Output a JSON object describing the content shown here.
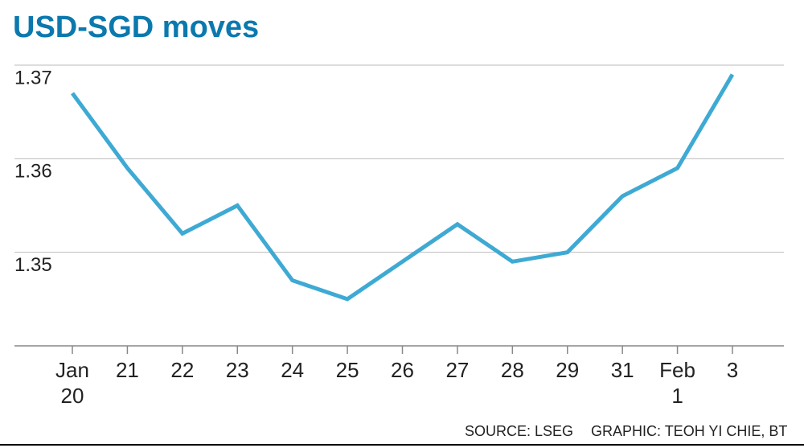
{
  "chart_data": {
    "type": "line",
    "title": "USD-SGD moves",
    "categories": [
      "Jan 20",
      "21",
      "22",
      "23",
      "24",
      "25",
      "26",
      "27",
      "28",
      "29",
      "31",
      "Feb 1",
      "3"
    ],
    "series": [
      {
        "name": "USD-SGD",
        "color": "#3eaad4",
        "values": [
          1.367,
          1.359,
          1.352,
          1.355,
          1.347,
          1.345,
          1.349,
          1.353,
          1.349,
          1.35,
          1.356,
          1.359,
          1.369
        ]
      }
    ],
    "ylim": [
      1.34,
      1.37
    ],
    "yticks": [
      1.35,
      1.36,
      1.37
    ],
    "grid": true,
    "source": "SOURCE: LSEG",
    "credit": "GRAPHIC: TEOH YI CHIE, BT"
  }
}
